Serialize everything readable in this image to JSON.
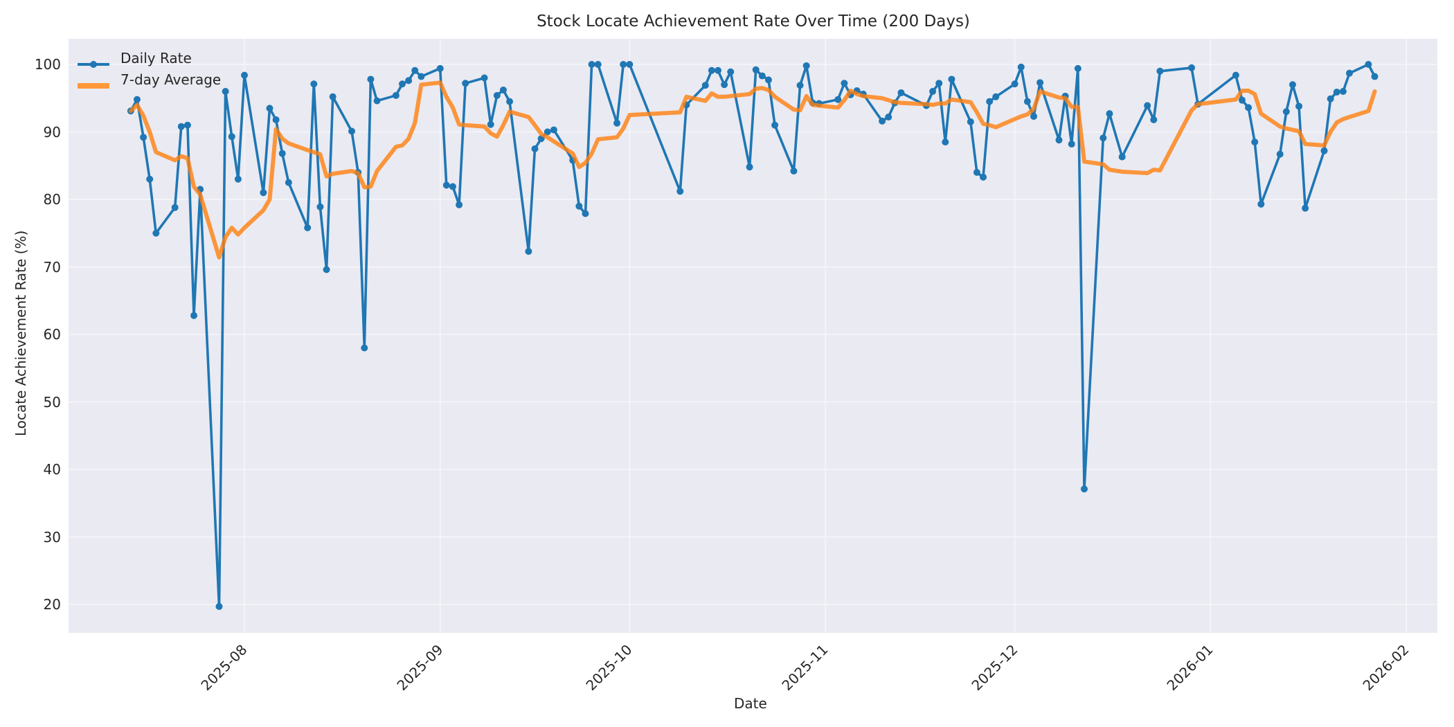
{
  "chart_data": {
    "type": "line",
    "title": "Stock Locate Achievement Rate Over Time (200 Days)",
    "xlabel": "Date",
    "ylabel": "Locate Achievement Rate (%)",
    "ylim": [
      15.5,
      103.8
    ],
    "xlim": [
      "2025-07-05",
      "2026-02-06"
    ],
    "grid": true,
    "legend_position": "upper left",
    "x_tick_labels": [
      "2025-08",
      "2025-09",
      "2025-10",
      "2025-11",
      "2025-12",
      "2026-01",
      "2026-02"
    ],
    "y_tick_labels": [
      "20",
      "30",
      "40",
      "50",
      "60",
      "70",
      "80",
      "90",
      "100"
    ],
    "series": [
      {
        "name": "Daily Rate",
        "color": "#1f77b4",
        "marker": "circle",
        "points": [
          [
            "2025-07-14",
            93.1
          ],
          [
            "2025-07-15",
            94.8
          ],
          [
            "2025-07-16",
            89.2
          ],
          [
            "2025-07-17",
            83.0
          ],
          [
            "2025-07-18",
            75.0
          ],
          [
            "2025-07-21",
            78.8
          ],
          [
            "2025-07-22",
            90.8
          ],
          [
            "2025-07-23",
            91.0
          ],
          [
            "2025-07-24",
            62.8
          ],
          [
            "2025-07-25",
            81.5
          ],
          [
            "2025-07-28",
            19.7
          ],
          [
            "2025-07-29",
            96.0
          ],
          [
            "2025-07-30",
            89.3
          ],
          [
            "2025-07-31",
            83.0
          ],
          [
            "2025-08-01",
            98.4
          ],
          [
            "2025-08-04",
            81.0
          ],
          [
            "2025-08-05",
            93.5
          ],
          [
            "2025-08-06",
            91.8
          ],
          [
            "2025-08-07",
            86.8
          ],
          [
            "2025-08-08",
            82.5
          ],
          [
            "2025-08-11",
            75.8
          ],
          [
            "2025-08-12",
            97.1
          ],
          [
            "2025-08-13",
            78.9
          ],
          [
            "2025-08-14",
            69.6
          ],
          [
            "2025-08-15",
            95.2
          ],
          [
            "2025-08-18",
            90.1
          ],
          [
            "2025-08-19",
            84.0
          ],
          [
            "2025-08-20",
            58.0
          ],
          [
            "2025-08-21",
            97.8
          ],
          [
            "2025-08-22",
            94.6
          ],
          [
            "2025-08-25",
            95.4
          ],
          [
            "2025-08-26",
            97.1
          ],
          [
            "2025-08-27",
            97.6
          ],
          [
            "2025-08-28",
            99.1
          ],
          [
            "2025-08-29",
            98.2
          ],
          [
            "2025-09-01",
            99.4
          ],
          [
            "2025-09-02",
            82.1
          ],
          [
            "2025-09-03",
            81.9
          ],
          [
            "2025-09-04",
            79.2
          ],
          [
            "2025-09-05",
            97.2
          ],
          [
            "2025-09-08",
            98.0
          ],
          [
            "2025-09-09",
            91.1
          ],
          [
            "2025-09-10",
            95.4
          ],
          [
            "2025-09-11",
            96.2
          ],
          [
            "2025-09-12",
            94.5
          ],
          [
            "2025-09-15",
            72.3
          ],
          [
            "2025-09-16",
            87.5
          ],
          [
            "2025-09-17",
            89.0
          ],
          [
            "2025-09-18",
            90.0
          ],
          [
            "2025-09-19",
            90.3
          ],
          [
            "2025-09-22",
            85.8
          ],
          [
            "2025-09-23",
            79.0
          ],
          [
            "2025-09-24",
            77.9
          ],
          [
            "2025-09-25",
            100.0
          ],
          [
            "2025-09-26",
            100.0
          ],
          [
            "2025-09-29",
            91.3
          ],
          [
            "2025-09-30",
            100.0
          ],
          [
            "2025-10-01",
            100.0
          ],
          [
            "2025-10-09",
            81.2
          ],
          [
            "2025-10-10",
            94.0
          ],
          [
            "2025-10-13",
            96.9
          ],
          [
            "2025-10-14",
            99.1
          ],
          [
            "2025-10-15",
            99.1
          ],
          [
            "2025-10-16",
            97.0
          ],
          [
            "2025-10-17",
            98.9
          ],
          [
            "2025-10-20",
            84.8
          ],
          [
            "2025-10-21",
            99.2
          ],
          [
            "2025-10-22",
            98.3
          ],
          [
            "2025-10-23",
            97.7
          ],
          [
            "2025-10-24",
            91.0
          ],
          [
            "2025-10-27",
            84.2
          ],
          [
            "2025-10-28",
            96.9
          ],
          [
            "2025-10-29",
            99.8
          ],
          [
            "2025-10-30",
            94.3
          ],
          [
            "2025-10-31",
            94.2
          ],
          [
            "2025-11-03",
            94.8
          ],
          [
            "2025-11-04",
            97.2
          ],
          [
            "2025-11-05",
            95.5
          ],
          [
            "2025-11-06",
            96.1
          ],
          [
            "2025-11-07",
            95.6
          ],
          [
            "2025-11-10",
            91.6
          ],
          [
            "2025-11-11",
            92.2
          ],
          [
            "2025-11-12",
            94.3
          ],
          [
            "2025-11-13",
            95.8
          ],
          [
            "2025-11-17",
            93.9
          ],
          [
            "2025-11-18",
            96.0
          ],
          [
            "2025-11-19",
            97.2
          ],
          [
            "2025-11-20",
            88.5
          ],
          [
            "2025-11-21",
            97.8
          ],
          [
            "2025-11-24",
            91.5
          ],
          [
            "2025-11-25",
            84.0
          ],
          [
            "2025-11-26",
            83.3
          ],
          [
            "2025-11-27",
            94.5
          ],
          [
            "2025-11-28",
            95.2
          ],
          [
            "2025-12-01",
            97.1
          ],
          [
            "2025-12-02",
            99.6
          ],
          [
            "2025-12-03",
            94.5
          ],
          [
            "2025-12-04",
            92.3
          ],
          [
            "2025-12-05",
            97.3
          ],
          [
            "2025-12-08",
            88.8
          ],
          [
            "2025-12-09",
            95.3
          ],
          [
            "2025-12-10",
            88.2
          ],
          [
            "2025-12-11",
            99.4
          ],
          [
            "2025-12-12",
            37.1
          ],
          [
            "2025-12-15",
            89.1
          ],
          [
            "2025-12-16",
            92.7
          ],
          [
            "2025-12-18",
            86.3
          ],
          [
            "2025-12-22",
            93.9
          ],
          [
            "2025-12-23",
            91.8
          ],
          [
            "2025-12-24",
            99.0
          ],
          [
            "2025-12-29",
            99.5
          ],
          [
            "2025-12-30",
            94.1
          ],
          [
            "2026-01-05",
            98.4
          ],
          [
            "2026-01-06",
            94.7
          ],
          [
            "2026-01-07",
            93.6
          ],
          [
            "2026-01-08",
            88.5
          ],
          [
            "2026-01-09",
            79.3
          ],
          [
            "2026-01-12",
            86.7
          ],
          [
            "2026-01-13",
            93.0
          ],
          [
            "2026-01-14",
            97.0
          ],
          [
            "2026-01-15",
            93.8
          ],
          [
            "2026-01-16",
            78.7
          ],
          [
            "2026-01-19",
            87.2
          ],
          [
            "2026-01-20",
            94.9
          ],
          [
            "2026-01-21",
            95.9
          ],
          [
            "2026-01-22",
            96.0
          ],
          [
            "2026-01-23",
            98.7
          ],
          [
            "2026-01-26",
            100.0
          ],
          [
            "2026-01-27",
            98.2
          ]
        ]
      },
      {
        "name": "7-day Average",
        "color": "#ff7f0e",
        "linewidth": 6,
        "points": [
          [
            "2025-07-14",
            93.1
          ],
          [
            "2025-07-15",
            94.0
          ],
          [
            "2025-07-16",
            92.4
          ],
          [
            "2025-07-17",
            90.0
          ],
          [
            "2025-07-18",
            87.0
          ],
          [
            "2025-07-21",
            85.8
          ],
          [
            "2025-07-22",
            86.4
          ],
          [
            "2025-07-23",
            86.1
          ],
          [
            "2025-07-24",
            81.9
          ],
          [
            "2025-07-25",
            80.7
          ],
          [
            "2025-07-28",
            71.4
          ],
          [
            "2025-07-29",
            74.4
          ],
          [
            "2025-07-30",
            75.8
          ],
          [
            "2025-07-31",
            74.8
          ],
          [
            "2025-08-01",
            75.8
          ],
          [
            "2025-08-04",
            78.4
          ],
          [
            "2025-08-05",
            80.0
          ],
          [
            "2025-08-06",
            90.4
          ],
          [
            "2025-08-07",
            89.0
          ],
          [
            "2025-08-08",
            88.3
          ],
          [
            "2025-08-11",
            87.3
          ],
          [
            "2025-08-12",
            87.0
          ],
          [
            "2025-08-13",
            86.7
          ],
          [
            "2025-08-14",
            83.4
          ],
          [
            "2025-08-15",
            83.8
          ],
          [
            "2025-08-18",
            84.2
          ],
          [
            "2025-08-19",
            83.9
          ],
          [
            "2025-08-20",
            81.8
          ],
          [
            "2025-08-21",
            81.9
          ],
          [
            "2025-08-22",
            84.2
          ],
          [
            "2025-08-25",
            87.8
          ],
          [
            "2025-08-26",
            88.0
          ],
          [
            "2025-08-27",
            89.0
          ],
          [
            "2025-08-28",
            91.3
          ],
          [
            "2025-08-29",
            97.0
          ],
          [
            "2025-09-01",
            97.3
          ],
          [
            "2025-09-02",
            95.2
          ],
          [
            "2025-09-03",
            93.6
          ],
          [
            "2025-09-04",
            91.1
          ],
          [
            "2025-09-05",
            91.0
          ],
          [
            "2025-09-08",
            90.8
          ],
          [
            "2025-09-09",
            89.8
          ],
          [
            "2025-09-10",
            89.3
          ],
          [
            "2025-09-11",
            91.0
          ],
          [
            "2025-09-12",
            93.0
          ],
          [
            "2025-09-15",
            92.2
          ],
          [
            "2025-09-16",
            91.0
          ],
          [
            "2025-09-17",
            89.7
          ],
          [
            "2025-09-18",
            89.2
          ],
          [
            "2025-09-19",
            88.6
          ],
          [
            "2025-09-22",
            86.8
          ],
          [
            "2025-09-23",
            84.8
          ],
          [
            "2025-09-24",
            85.4
          ],
          [
            "2025-09-25",
            86.8
          ],
          [
            "2025-09-26",
            88.9
          ],
          [
            "2025-09-29",
            89.2
          ],
          [
            "2025-09-30",
            90.5
          ],
          [
            "2025-10-01",
            92.5
          ],
          [
            "2025-10-09",
            92.9
          ],
          [
            "2025-10-10",
            95.2
          ],
          [
            "2025-10-13",
            94.6
          ],
          [
            "2025-10-14",
            95.7
          ],
          [
            "2025-10-15",
            95.2
          ],
          [
            "2025-10-16",
            95.2
          ],
          [
            "2025-10-17",
            95.3
          ],
          [
            "2025-10-20",
            95.6
          ],
          [
            "2025-10-21",
            96.4
          ],
          [
            "2025-10-22",
            96.5
          ],
          [
            "2025-10-23",
            96.2
          ],
          [
            "2025-10-24",
            95.2
          ],
          [
            "2025-10-27",
            93.3
          ],
          [
            "2025-10-28",
            93.2
          ],
          [
            "2025-10-29",
            95.3
          ],
          [
            "2025-10-30",
            94.0
          ],
          [
            "2025-10-31",
            93.9
          ],
          [
            "2025-11-03",
            93.6
          ],
          [
            "2025-11-04",
            94.7
          ],
          [
            "2025-11-05",
            96.1
          ],
          [
            "2025-11-06",
            95.6
          ],
          [
            "2025-11-07",
            95.3
          ],
          [
            "2025-11-10",
            95.0
          ],
          [
            "2025-11-11",
            94.7
          ],
          [
            "2025-11-12",
            94.4
          ],
          [
            "2025-11-13",
            94.3
          ],
          [
            "2025-11-17",
            94.1
          ],
          [
            "2025-11-18",
            94.0
          ],
          [
            "2025-11-19",
            94.2
          ],
          [
            "2025-11-20",
            94.2
          ],
          [
            "2025-11-21",
            94.8
          ],
          [
            "2025-11-24",
            94.4
          ],
          [
            "2025-11-25",
            92.9
          ],
          [
            "2025-11-26",
            91.2
          ],
          [
            "2025-11-27",
            91.0
          ],
          [
            "2025-11-28",
            90.7
          ],
          [
            "2025-12-01",
            91.9
          ],
          [
            "2025-12-02",
            92.3
          ],
          [
            "2025-12-03",
            92.6
          ],
          [
            "2025-12-04",
            93.4
          ],
          [
            "2025-12-05",
            96.0
          ],
          [
            "2025-12-08",
            95.1
          ],
          [
            "2025-12-09",
            95.0
          ],
          [
            "2025-12-10",
            93.7
          ],
          [
            "2025-12-11",
            93.7
          ],
          [
            "2025-12-12",
            85.6
          ],
          [
            "2025-12-15",
            85.2
          ],
          [
            "2025-12-16",
            84.4
          ],
          [
            "2025-12-18",
            84.1
          ],
          [
            "2025-12-22",
            83.9
          ],
          [
            "2025-12-23",
            84.4
          ],
          [
            "2025-12-24",
            84.3
          ],
          [
            "2025-12-29",
            93.2
          ],
          [
            "2025-12-30",
            94.1
          ],
          [
            "2026-01-05",
            94.8
          ],
          [
            "2026-01-06",
            96.1
          ],
          [
            "2026-01-07",
            96.1
          ],
          [
            "2026-01-08",
            95.6
          ],
          [
            "2026-01-09",
            92.7
          ],
          [
            "2026-01-12",
            90.8
          ],
          [
            "2026-01-13",
            90.5
          ],
          [
            "2026-01-14",
            90.3
          ],
          [
            "2026-01-15",
            90.1
          ],
          [
            "2026-01-16",
            88.2
          ],
          [
            "2026-01-19",
            88.0
          ],
          [
            "2026-01-20",
            90.0
          ],
          [
            "2026-01-21",
            91.4
          ],
          [
            "2026-01-22",
            91.9
          ],
          [
            "2026-01-23",
            92.2
          ],
          [
            "2026-01-26",
            93.1
          ],
          [
            "2026-01-27",
            96.0
          ]
        ]
      }
    ],
    "colors": {
      "plot_background": "#eaeaf2",
      "grid": "#f5f5f8",
      "daily_line": "#1f77b4",
      "avg_line": "#ff7f0e"
    }
  }
}
